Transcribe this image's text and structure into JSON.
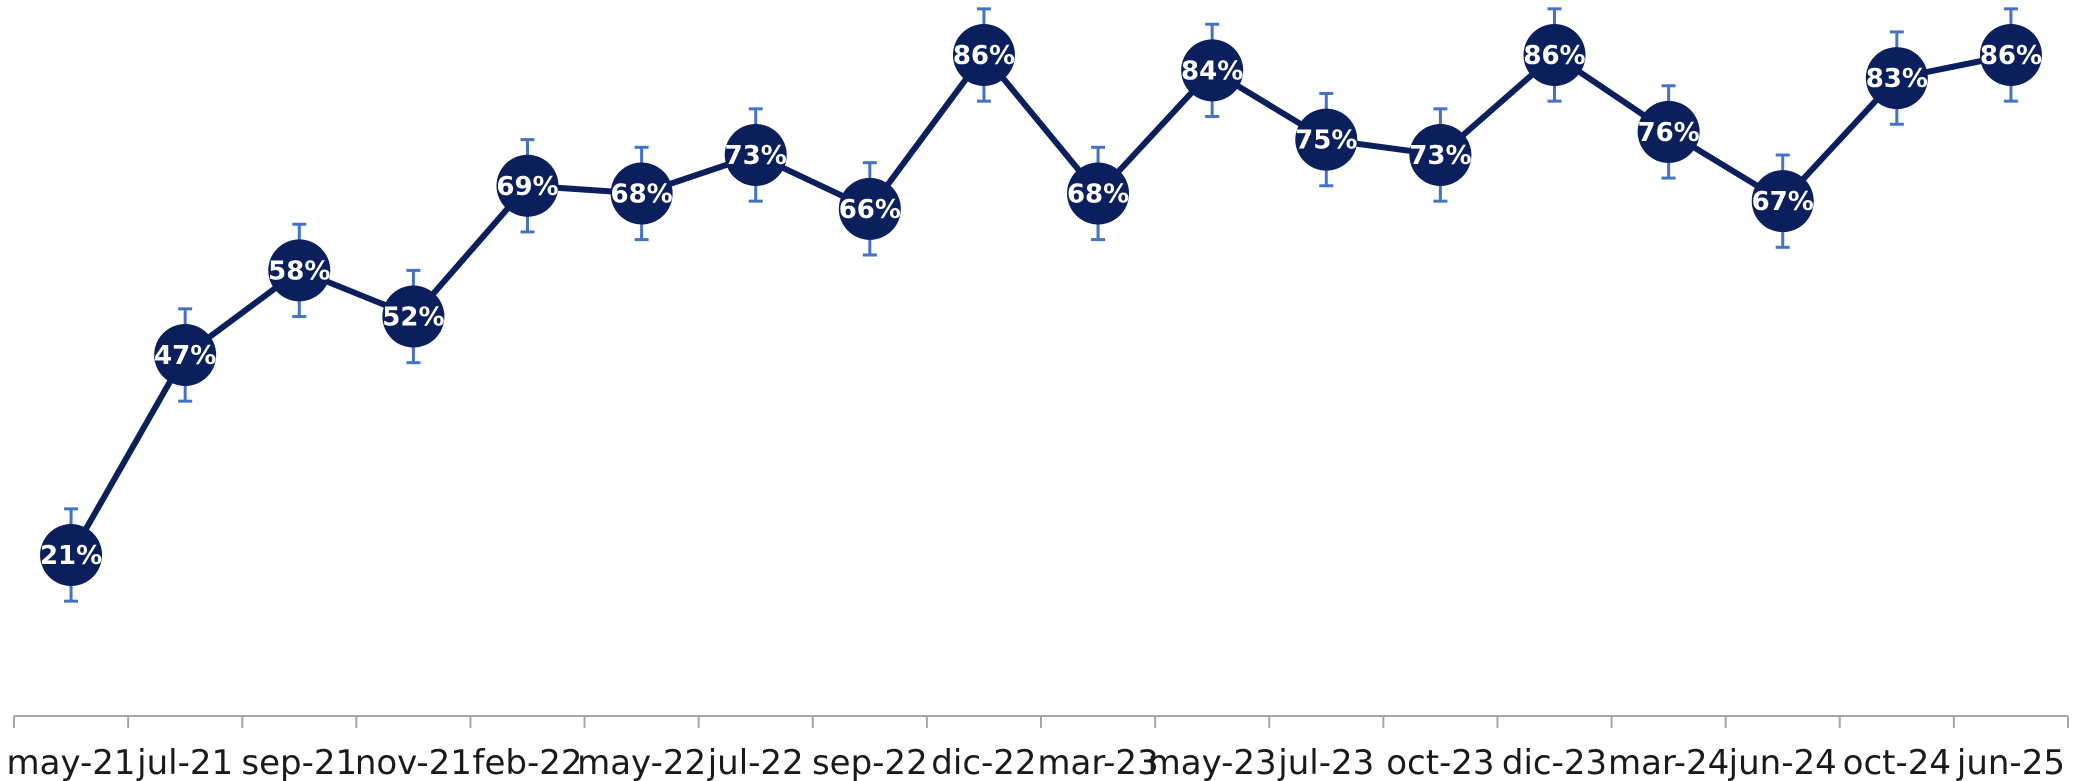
{
  "chart_data": {
    "type": "line",
    "title": "",
    "xlabel": "",
    "ylabel": "",
    "categories": [
      "may-21",
      "jul-21",
      "sep-21",
      "nov-21",
      "feb-22",
      "may-22",
      "jul-22",
      "sep-22",
      "dic-22",
      "mar-23",
      "may-23",
      "jul-23",
      "oct-23",
      "dic-23",
      "mar-24",
      "jun-24",
      "oct-24",
      "jun-25"
    ],
    "series": [
      {
        "values": [
          21,
          47,
          58,
          52,
          69,
          68,
          73,
          66,
          86,
          68,
          84,
          75,
          73,
          86,
          76,
          67,
          83,
          86
        ],
        "labels": [
          "21%",
          "47%",
          "58%",
          "52%",
          "69%",
          "68%",
          "73%",
          "66%",
          "86%",
          "68%",
          "84%",
          "75%",
          "73%",
          "86%",
          "76%",
          "67%",
          "83%",
          "86%"
        ],
        "error_margin": 6
      }
    ],
    "ylim": [
      10,
      92
    ],
    "grid": false,
    "legend": "none",
    "colors": {
      "line": "#0a1f5c",
      "marker": "#0a1f5c",
      "error_bar": "#4472c4",
      "axis": "#a6a6a6",
      "label_text": "#ffffff"
    }
  }
}
